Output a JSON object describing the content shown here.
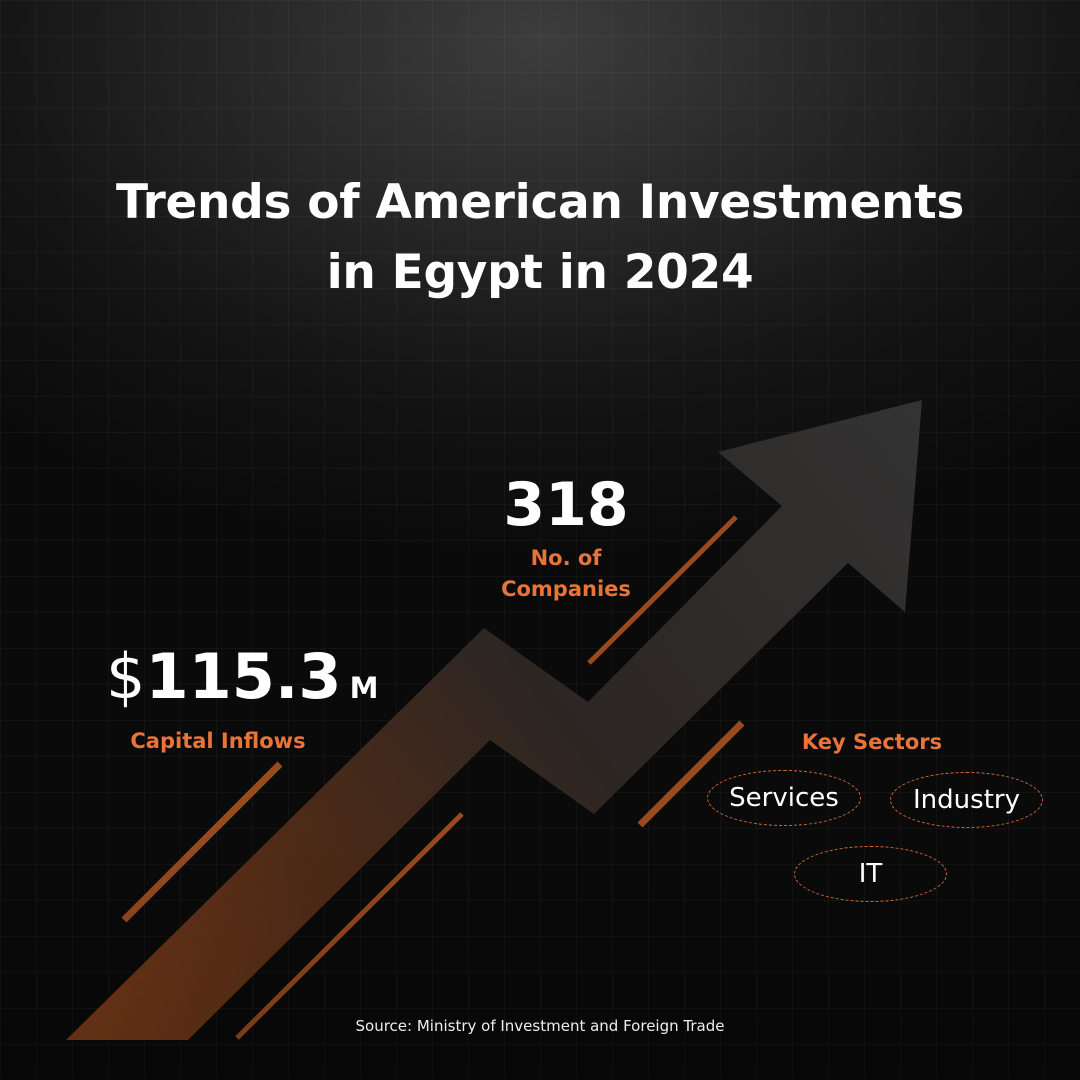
{
  "title": {
    "line1": "Trends of American Investments",
    "line2": "in Egypt in 2024"
  },
  "stats": {
    "companies": {
      "value": "318",
      "label_line1": "No. of",
      "label_line2": "Companies"
    },
    "capital": {
      "currency": "$",
      "value": "115.3",
      "unit": "M",
      "label": "Capital Inflows"
    }
  },
  "sectors": {
    "label": "Key Sectors",
    "items": [
      "Services",
      "Industry",
      "IT"
    ]
  },
  "source": "Source: Ministry of Investment and Foreign Trade",
  "colors": {
    "accent": "#e8743a",
    "text": "#ffffff",
    "background": "#1a1a1a"
  },
  "icons": [
    "upward-trend-arrow-icon"
  ]
}
